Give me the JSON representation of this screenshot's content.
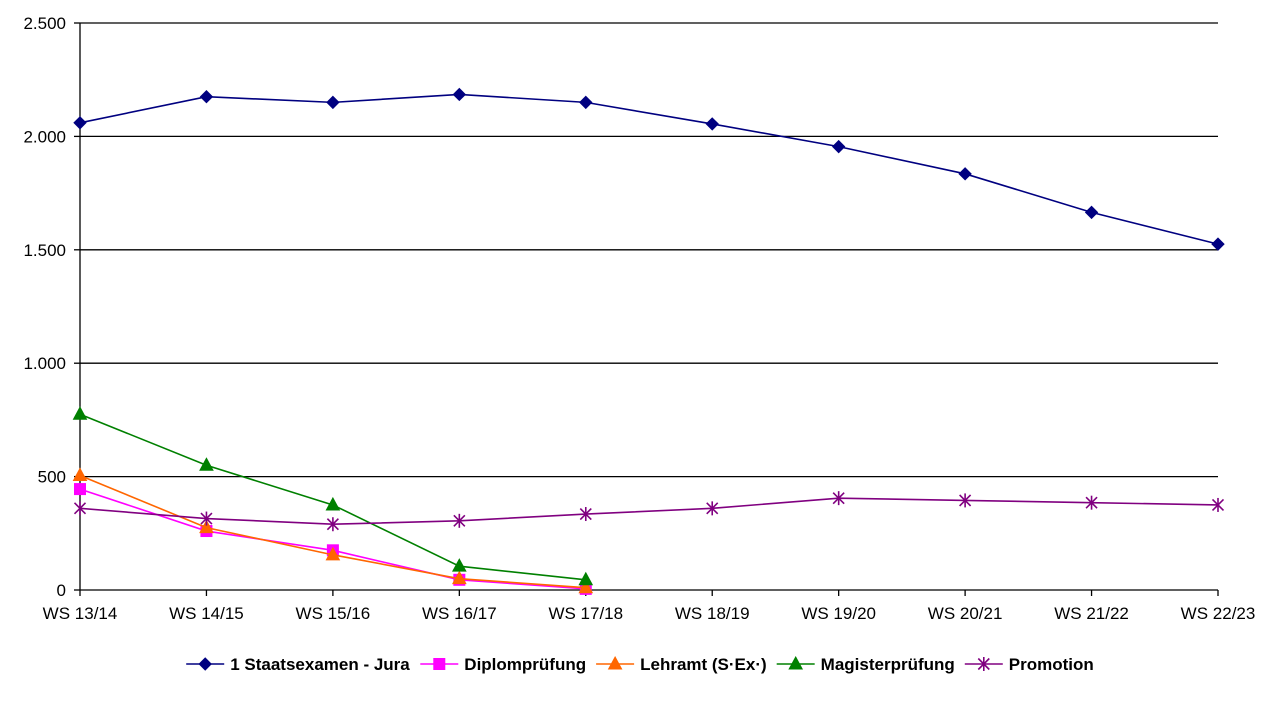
{
  "chart_data": {
    "type": "line",
    "categories": [
      "WS 13/14",
      "WS 14/15",
      "WS 15/16",
      "WS 16/17",
      "WS 17/18",
      "WS 18/19",
      "WS 19/20",
      "WS 20/21",
      "WS 21/22",
      "WS 22/23"
    ],
    "ylim": [
      0,
      2500
    ],
    "yticks": [
      0,
      500,
      1000,
      1500,
      2000,
      2500
    ],
    "ytick_labels": [
      "0",
      "500",
      "1.000",
      "1.500",
      "2.000",
      "2.500"
    ],
    "grid": "horizontal",
    "legend_position": "bottom",
    "series": [
      {
        "name": "1 Staatsexamen - Jura",
        "color": "#000080",
        "marker": "diamond",
        "values": [
          2060,
          2175,
          2150,
          2185,
          2150,
          2055,
          1955,
          1835,
          1665,
          1525
        ]
      },
      {
        "name": "Diplomprüfung",
        "color": "#FF00FF",
        "marker": "square",
        "values": [
          445,
          260,
          175,
          45,
          5,
          null,
          null,
          null,
          null,
          null
        ]
      },
      {
        "name": "Lehramt (S·Ex·)",
        "color": "#FF6600",
        "marker": "triangle",
        "values": [
          505,
          275,
          155,
          50,
          10,
          null,
          null,
          null,
          null,
          null
        ]
      },
      {
        "name": "Magisterprüfung",
        "color": "#008000",
        "marker": "triangle",
        "values": [
          775,
          550,
          375,
          105,
          45,
          null,
          null,
          null,
          null,
          null
        ]
      },
      {
        "name": "Promotion",
        "color": "#800080",
        "marker": "asterisk",
        "values": [
          360,
          315,
          290,
          305,
          335,
          360,
          405,
          395,
          385,
          375
        ]
      }
    ]
  }
}
